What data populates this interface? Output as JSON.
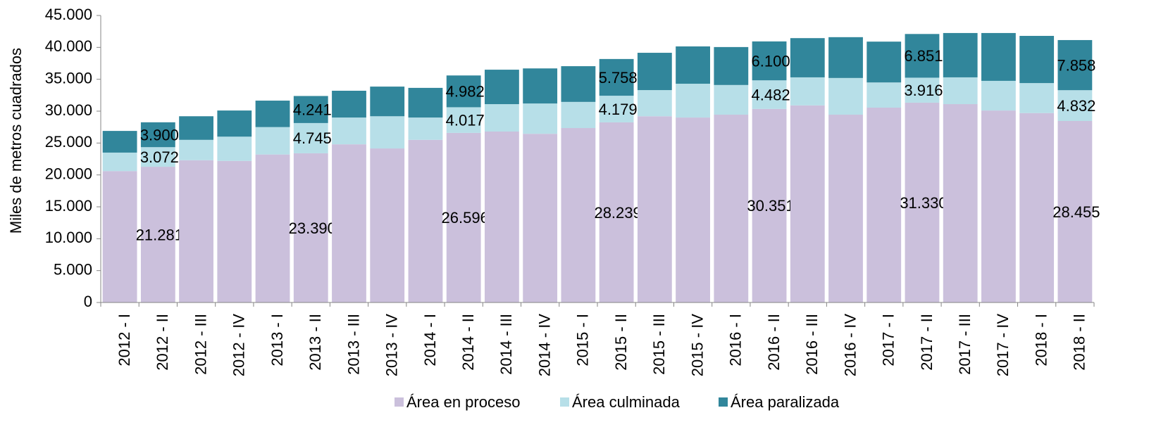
{
  "chart_data": {
    "type": "stacked-bar",
    "y_label": "Miles de metros cuadrados",
    "categories": [
      "2012 - I",
      "2012 - II",
      "2012 - III",
      "2012 - IV",
      "2013 - I",
      "2013 - II",
      "2013 - III",
      "2013 - IV",
      "2014 - I",
      "2014 - II",
      "2014 - III",
      "2014 - IV",
      "2015 - I",
      "2015 - II",
      "2015 - III",
      "2015 - IV",
      "2016 - I",
      "2016 - II",
      "2016 - III",
      "2016 - IV",
      "2017 - I",
      "2017 - II",
      "2017 - III",
      "2017 - IV",
      "2018 - I",
      "2018 - II"
    ],
    "series": [
      {
        "name": "Área en proceso",
        "color": "#cbc0dc",
        "values": [
          20600,
          21281,
          22300,
          22200,
          23200,
          23390,
          24800,
          24150,
          25500,
          26596,
          26800,
          26450,
          27350,
          28239,
          29200,
          29000,
          29450,
          30351,
          30900,
          29450,
          30550,
          31330,
          31100,
          30100,
          29700,
          28455
        ],
        "value_labels": [
          null,
          "21.281",
          null,
          null,
          null,
          "23.390",
          null,
          null,
          null,
          "26.596",
          null,
          null,
          null,
          "28.239",
          null,
          null,
          null,
          "30.351",
          null,
          null,
          null,
          "31.330",
          null,
          null,
          null,
          "28.455"
        ]
      },
      {
        "name": "Área culminada",
        "color": "#b7dfe8",
        "values": [
          2900,
          3072,
          3200,
          3800,
          4300,
          4745,
          4200,
          5050,
          3500,
          4017,
          4300,
          4750,
          4100,
          4179,
          4100,
          5300,
          4650,
          4482,
          4400,
          5750,
          3950,
          3916,
          4200,
          4650,
          4700,
          4832
        ],
        "value_labels": [
          null,
          "3.072",
          null,
          null,
          null,
          "4.745",
          null,
          null,
          null,
          "4.017",
          null,
          null,
          null,
          "4.179",
          null,
          null,
          null,
          "4.482",
          null,
          null,
          null,
          "3.916",
          null,
          null,
          null,
          "4.832"
        ]
      },
      {
        "name": "Área paralizada",
        "color": "#31869b",
        "values": [
          3400,
          3900,
          3700,
          4100,
          4150,
          4241,
          4200,
          4650,
          4650,
          4982,
          5400,
          5500,
          5600,
          5758,
          5850,
          5850,
          5950,
          6100,
          6150,
          6400,
          6400,
          6851,
          6950,
          7500,
          7400,
          7858
        ],
        "value_labels": [
          null,
          "3.900",
          null,
          null,
          null,
          "4.241",
          null,
          null,
          null,
          "4.982",
          null,
          null,
          null,
          "5.758",
          null,
          null,
          null,
          "6.100",
          null,
          null,
          null,
          "6.851",
          null,
          null,
          null,
          "7.858"
        ]
      }
    ],
    "ylim": [
      0,
      45000
    ],
    "yticks": [
      0,
      {
        "value": 5000,
        "label": "5.000"
      },
      {
        "value": 10000,
        "label": "10.000"
      },
      {
        "value": 15000,
        "label": "15.000"
      },
      {
        "value": 20000,
        "label": "20.000"
      },
      {
        "value": 25000,
        "label": "25.000"
      },
      {
        "value": 30000,
        "label": "30.000"
      },
      {
        "value": 35000,
        "label": "35.000"
      },
      {
        "value": 40000,
        "label": "40.000"
      },
      {
        "value": 45000,
        "label": "45.000"
      }
    ],
    "legend": "bottom"
  }
}
